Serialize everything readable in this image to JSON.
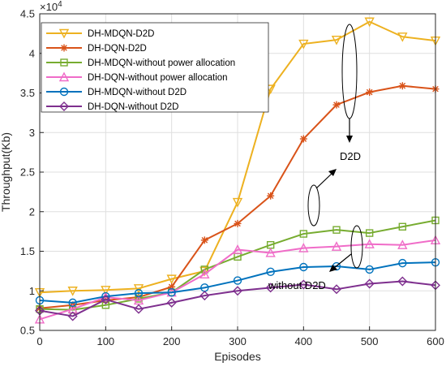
{
  "chart_data": {
    "type": "line",
    "xlabel": "Episodes",
    "ylabel": "Throughput(Kb)",
    "y_multiplier_label": "×10",
    "y_multiplier_exp": "4",
    "xlim": [
      0,
      600
    ],
    "ylim": [
      0.5,
      4.5
    ],
    "x_ticks": [
      0,
      100,
      200,
      300,
      400,
      500,
      600
    ],
    "x_tick_labels": [
      "0",
      "100",
      "200",
      "300",
      "400",
      "500",
      "600"
    ],
    "y_ticks": [
      0.5,
      1,
      1.5,
      2,
      2.5,
      3,
      3.5,
      4,
      4.5
    ],
    "y_tick_labels": [
      "0.5",
      "1",
      "1.5",
      "2",
      "2.5",
      "3",
      "3.5",
      "4",
      "4.5"
    ],
    "grid": true,
    "legend_position": "top-left",
    "x": [
      0,
      50,
      100,
      150,
      200,
      250,
      300,
      350,
      400,
      450,
      500,
      550,
      600
    ],
    "series": [
      {
        "name": "DH-MDQN-D2D",
        "color": "#EDB120",
        "marker": "triangle-down",
        "values": [
          0.98,
          1.0,
          1.01,
          1.03,
          1.15,
          1.25,
          2.12,
          3.55,
          4.12,
          4.17,
          4.4,
          4.21,
          4.16
        ]
      },
      {
        "name": "DH-DQN-D2D",
        "color": "#D95319",
        "marker": "asterisk",
        "values": [
          0.78,
          0.82,
          0.88,
          0.92,
          1.05,
          1.64,
          1.85,
          2.2,
          2.92,
          3.35,
          3.51,
          3.59,
          3.55
        ]
      },
      {
        "name": "DH-MDQN-without power allocation",
        "color": "#77AC30",
        "marker": "square",
        "values": [
          0.77,
          0.76,
          0.82,
          0.9,
          0.98,
          1.27,
          1.43,
          1.58,
          1.72,
          1.77,
          1.73,
          1.81,
          1.89
        ]
      },
      {
        "name": "DH-DQN-without power allocation",
        "color": "#F06CC8",
        "marker": "triangle-up",
        "values": [
          0.64,
          0.77,
          0.92,
          0.88,
          0.98,
          1.21,
          1.52,
          1.48,
          1.54,
          1.56,
          1.59,
          1.58,
          1.64
        ]
      },
      {
        "name": "DH-MDQN-without D2D",
        "color": "#0072BD",
        "marker": "circle",
        "values": [
          0.88,
          0.85,
          0.93,
          0.97,
          0.98,
          1.04,
          1.13,
          1.24,
          1.3,
          1.31,
          1.27,
          1.35,
          1.36
        ]
      },
      {
        "name": "DH-DQN-without D2D",
        "color": "#7E2F8E",
        "marker": "diamond",
        "values": [
          0.75,
          0.68,
          0.89,
          0.77,
          0.85,
          0.94,
          1.0,
          1.04,
          1.08,
          1.02,
          1.09,
          1.12,
          1.07
        ]
      }
    ],
    "annotations": [
      {
        "text": "D2D"
      },
      {
        "text": "without D2D"
      }
    ]
  }
}
